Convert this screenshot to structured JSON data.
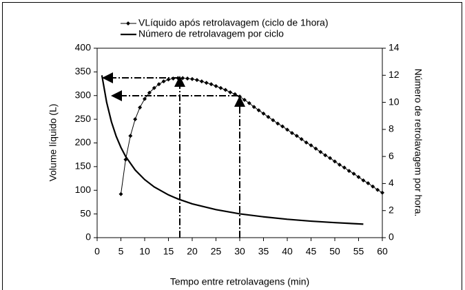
{
  "chart_data": {
    "type": "line",
    "x_label": "Tempo entre retrolavagens (min)",
    "y_label": "Volume líquido (L)",
    "y2_label": "Número de retrolavagem por hora.",
    "xlim": [
      0,
      60
    ],
    "xticks": [
      0,
      5,
      10,
      15,
      20,
      25,
      30,
      35,
      40,
      45,
      50,
      55,
      60
    ],
    "ylim": [
      0,
      400
    ],
    "yticks": [
      0,
      50,
      100,
      150,
      200,
      250,
      300,
      350,
      400
    ],
    "y2lim": [
      0,
      14
    ],
    "y2ticks": [
      0,
      2,
      4,
      6,
      8,
      10,
      12,
      14
    ],
    "series": [
      {
        "name": "VLíquido após retrolavagem (ciclo de 1hora)",
        "color": "#000000",
        "marker": "diamond",
        "x": [
          5,
          6,
          7,
          8,
          9,
          10,
          11,
          12,
          13,
          14,
          15,
          16,
          17,
          18,
          19,
          20,
          21,
          22,
          23,
          24,
          25,
          26,
          27,
          28,
          29,
          30,
          31,
          32,
          33,
          34,
          35,
          36,
          37,
          38,
          39,
          40,
          41,
          42,
          43,
          44,
          45,
          46,
          47,
          48,
          49,
          50,
          51,
          52,
          53,
          54,
          55,
          56,
          57,
          58,
          59,
          60
        ],
        "values": [
          92,
          165,
          215,
          250,
          275,
          293,
          306,
          316,
          324,
          330,
          334,
          336,
          337,
          337,
          336,
          335,
          333,
          330,
          327,
          324,
          320,
          316,
          312,
          307,
          303,
          298,
          291,
          284,
          276,
          269,
          262,
          255,
          248,
          241,
          235,
          228,
          221,
          215,
          208,
          201,
          195,
          188,
          181,
          174,
          168,
          161,
          154,
          148,
          141,
          135,
          128,
          121,
          115,
          108,
          101,
          95
        ]
      },
      {
        "name": "Número de retrolavagem por ciclo",
        "color": "#000000",
        "axis": "y2",
        "x": [
          1,
          2,
          3,
          4,
          5,
          6,
          8,
          10,
          12,
          15,
          17,
          20,
          25,
          30,
          35,
          40,
          45,
          50,
          56
        ],
        "values": [
          12,
          10,
          8.57,
          7.5,
          6.67,
          6,
          5,
          4.29,
          3.75,
          3.16,
          2.86,
          2.5,
          2.07,
          1.76,
          1.54,
          1.36,
          1.22,
          1.11,
          1.0
        ]
      }
    ]
  }
}
